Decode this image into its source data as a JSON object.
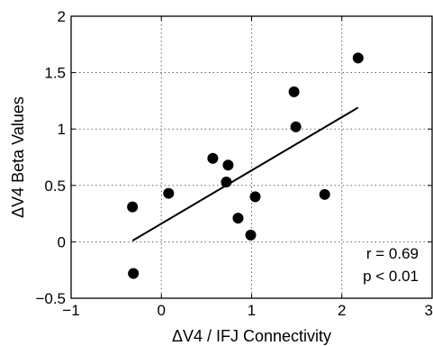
{
  "chart_data": {
    "type": "scatter",
    "title": "",
    "xlabel": "ΔV4 / IFJ Connectivity",
    "ylabel": "ΔV4 Beta Values",
    "xlim": [
      -1,
      3
    ],
    "ylim": [
      -0.5,
      2
    ],
    "xticks": [
      -1,
      0,
      1,
      2,
      3
    ],
    "yticks": [
      -0.5,
      0,
      0.5,
      1,
      1.5,
      2
    ],
    "xtick_labels": [
      "−1",
      "0",
      "1",
      "2",
      "3"
    ],
    "ytick_labels": [
      "−0.5",
      "0",
      "0.5",
      "1",
      "1.5",
      "2"
    ],
    "grid": true,
    "points": [
      {
        "x": -0.32,
        "y": 0.31
      },
      {
        "x": -0.31,
        "y": -0.28
      },
      {
        "x": 0.08,
        "y": 0.43
      },
      {
        "x": 0.57,
        "y": 0.74
      },
      {
        "x": 0.72,
        "y": 0.53
      },
      {
        "x": 0.74,
        "y": 0.68
      },
      {
        "x": 0.85,
        "y": 0.21
      },
      {
        "x": 0.99,
        "y": 0.06
      },
      {
        "x": 1.04,
        "y": 0.4
      },
      {
        "x": 1.47,
        "y": 1.33
      },
      {
        "x": 1.49,
        "y": 1.02
      },
      {
        "x": 1.81,
        "y": 0.42
      },
      {
        "x": 2.18,
        "y": 1.63
      }
    ],
    "fit_line": {
      "x": [
        -0.32,
        2.18
      ],
      "y": [
        0.01,
        1.19
      ]
    },
    "annotations": [
      "r = 0.69",
      "p < 0.01"
    ]
  }
}
